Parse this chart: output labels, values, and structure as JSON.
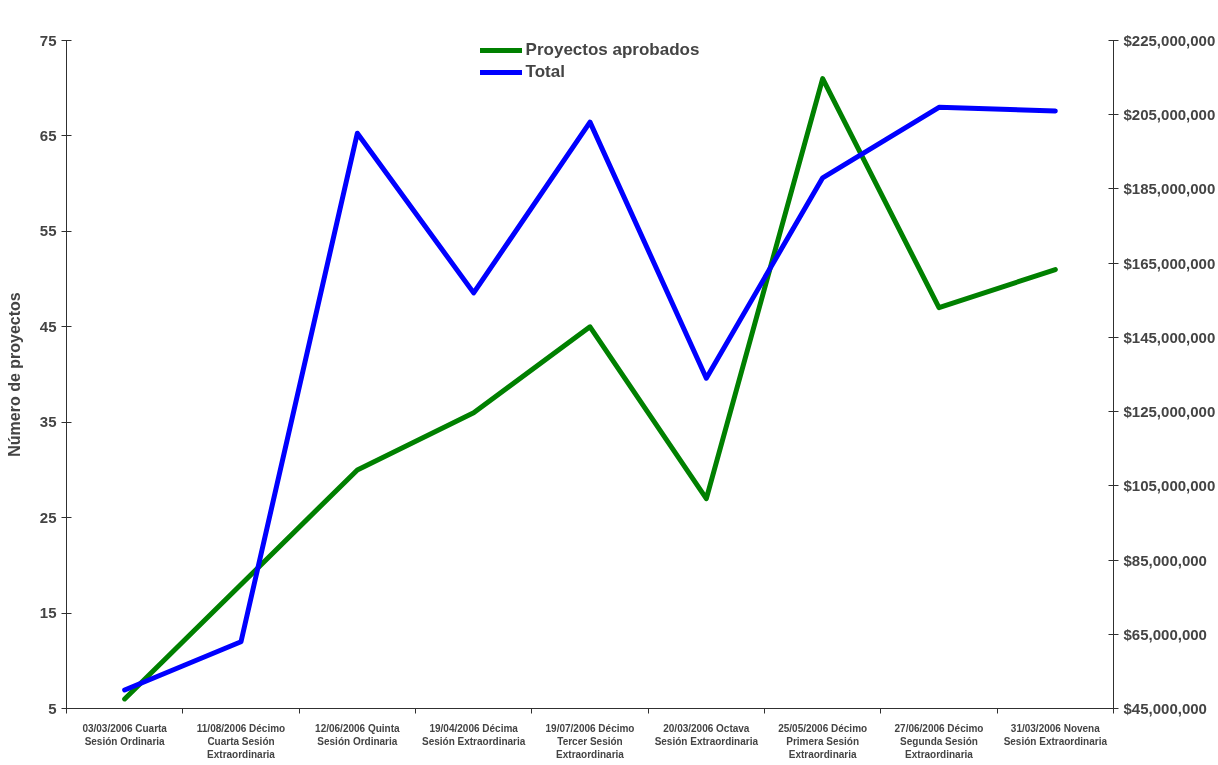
{
  "chart_data": {
    "type": "line",
    "ylabel": "Número de proyectos",
    "categories": [
      "03/03/2006 Cuarta Sesión Ordinaria",
      "11/08/2006 Décimo Cuarta Sesión Extraordinaria",
      "12/06/2006 Quinta Sesión Ordinaria",
      "19/04/2006 Décima Sesión Extraordinaria",
      "19/07/2006 Décimo Tercer Sesión Extraordinaria",
      "20/03/2006 Octava Sesión Extraordinaria",
      "25/05/2006 Décimo Primera Sesión Extraordinaria",
      "27/06/2006 Décimo Segunda Sesión Extraordinaria",
      "31/03/2006 Novena Sesión Extraordinaria"
    ],
    "series": [
      {
        "name": "Proyectos aprobados",
        "color": "#008000",
        "values": [
          6,
          18,
          30,
          36,
          45,
          27,
          71,
          47,
          51
        ]
      },
      {
        "name": "Total",
        "color": "#0000ff",
        "axis": "y2",
        "values": [
          50000000,
          63000000,
          200000000,
          157000000,
          203000000,
          134000000,
          188000000,
          207000000,
          206000000
        ]
      }
    ],
    "ylim": [
      5,
      75
    ],
    "yticks": [
      5,
      15,
      25,
      35,
      45,
      55,
      65,
      75
    ],
    "y2lim": [
      45000000,
      225000000
    ],
    "y2ticks": [
      {
        "value": 45000000,
        "label": "$45,000,000"
      },
      {
        "value": 65000000,
        "label": "$65,000,000"
      },
      {
        "value": 85000000,
        "label": "$85,000,000"
      },
      {
        "value": 105000000,
        "label": "$105,000,000"
      },
      {
        "value": 125000000,
        "label": "$125,000,000"
      },
      {
        "value": 145000000,
        "label": "$145,000,000"
      },
      {
        "value": 165000000,
        "label": "$165,000,000"
      },
      {
        "value": 185000000,
        "label": "$185,000,000"
      },
      {
        "value": 205000000,
        "label": "$205,000,000"
      },
      {
        "value": 225000000,
        "label": "$225,000,000"
      }
    ],
    "legend": "top",
    "grid": false,
    "line_style": "solid"
  }
}
